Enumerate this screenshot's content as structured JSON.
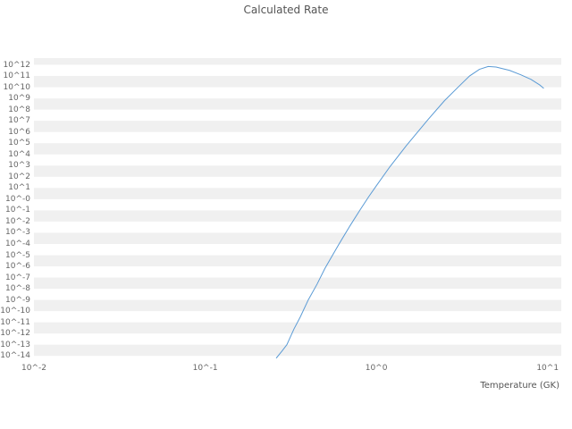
{
  "chart_data": {
    "type": "line",
    "title": "Calculated Rate",
    "xlabel": "Temperature (GK)",
    "ylabel": "",
    "xscale": "log",
    "yscale": "log",
    "xlim_log10": [
      -2,
      1.08
    ],
    "ylim_log10": [
      -14.3,
      12.6
    ],
    "grid": "alternating horizontal decade bands",
    "legend": "none",
    "colors": {
      "line": "#5b9bd5",
      "band": "#f0f0f0",
      "tick_text": "#666666",
      "title_text": "#545454",
      "axis_text": "#555555"
    },
    "x_ticks": [
      {
        "log10": -2,
        "label": "10^-2"
      },
      {
        "log10": -1,
        "label": "10^-1"
      },
      {
        "log10": 0,
        "label": "10^0"
      },
      {
        "log10": 1,
        "label": "10^1"
      }
    ],
    "y_ticks": [
      {
        "log10": 12,
        "label": "10^12"
      },
      {
        "log10": 11,
        "label": "10^11"
      },
      {
        "log10": 10,
        "label": "10^10"
      },
      {
        "log10": 9,
        "label": "10^9"
      },
      {
        "log10": 8,
        "label": "10^8"
      },
      {
        "log10": 7,
        "label": "10^7"
      },
      {
        "log10": 6,
        "label": "10^6"
      },
      {
        "log10": 5,
        "label": "10^5"
      },
      {
        "log10": 4,
        "label": "10^4"
      },
      {
        "log10": 3,
        "label": "10^3"
      },
      {
        "log10": 2,
        "label": "10^2"
      },
      {
        "log10": 1,
        "label": "10^1"
      },
      {
        "log10": 0,
        "label": "10^-0"
      },
      {
        "log10": -1,
        "label": "10^-1"
      },
      {
        "log10": -2,
        "label": "10^-2"
      },
      {
        "log10": -3,
        "label": "10^-3"
      },
      {
        "log10": -4,
        "label": "10^-4"
      },
      {
        "log10": -5,
        "label": "10^-5"
      },
      {
        "log10": -6,
        "label": "10^-6"
      },
      {
        "log10": -7,
        "label": "10^-7"
      },
      {
        "log10": -8,
        "label": "10^-8"
      },
      {
        "log10": -9,
        "label": "10^-9"
      },
      {
        "log10": -10,
        "label": "10^-10"
      },
      {
        "log10": -11,
        "label": "10^-11"
      },
      {
        "log10": -12,
        "label": "10^-12"
      },
      {
        "log10": -13,
        "label": "10^-13"
      },
      {
        "log10": -14,
        "label": "10^-14"
      }
    ],
    "series": [
      {
        "name": "calculated-rate",
        "x": [
          0.26,
          0.28,
          0.3,
          0.33,
          0.36,
          0.4,
          0.45,
          0.5,
          0.55,
          0.6,
          0.7,
          0.8,
          0.9,
          1.0,
          1.2,
          1.5,
          2.0,
          2.5,
          3.0,
          3.5,
          4.0,
          4.5,
          5.0,
          6.0,
          7.0,
          8.0,
          9.0,
          9.5
        ],
        "log10_y": [
          -14.2,
          -13.6,
          -13.0,
          -11.6,
          -10.5,
          -9.0,
          -7.6,
          -6.2,
          -5.1,
          -4.1,
          -2.4,
          -1.0,
          0.2,
          1.2,
          2.9,
          4.8,
          7.1,
          8.8,
          10.0,
          11.0,
          11.6,
          11.85,
          11.8,
          11.5,
          11.1,
          10.7,
          10.2,
          9.9
        ]
      }
    ]
  }
}
